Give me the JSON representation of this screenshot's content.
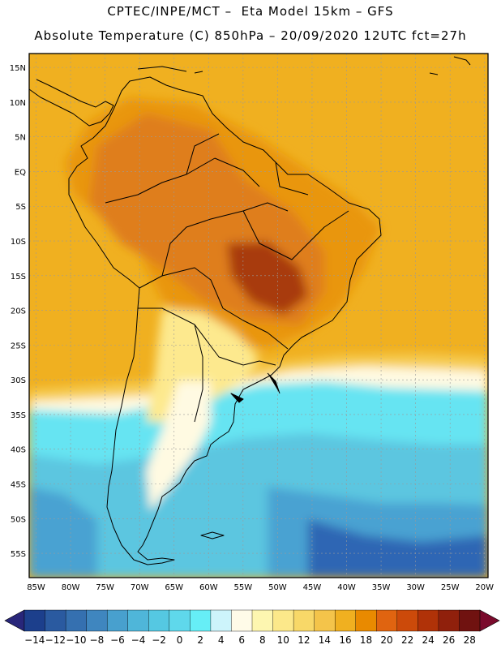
{
  "header": {
    "line1": "CPTEC/INPE/MCT –  Eta Model 15km – GFS",
    "line2": "Absolute Temperature (C) 850hPa – 20/09/2020 12UTC fct=27h"
  },
  "map": {
    "lat_labels": [
      "15N",
      "10N",
      "5N",
      "EQ",
      "5S",
      "10S",
      "15S",
      "20S",
      "25S",
      "30S",
      "35S",
      "40S",
      "45S",
      "50S",
      "55S"
    ],
    "lon_labels": [
      "85W",
      "80W",
      "75W",
      "70W",
      "65W",
      "60W",
      "55W",
      "50W",
      "45W",
      "40W",
      "35W",
      "30W",
      "25W",
      "20W"
    ]
  },
  "colorbar": {
    "labels": [
      "-14",
      "-12",
      "-10",
      "-8",
      "-6",
      "-4",
      "-2",
      "0",
      "2",
      "4",
      "6",
      "8",
      "10",
      "12",
      "14",
      "16",
      "18",
      "20",
      "22",
      "24",
      "26",
      "28"
    ],
    "colors": [
      "#1c3f8c",
      "#2a5aa0",
      "#3570b0",
      "#3f86bf",
      "#48a0ce",
      "#4fb6d9",
      "#55c8e2",
      "#5fd8eb",
      "#66eef6",
      "#cdf4fb",
      "#fffbe8",
      "#fdf6b0",
      "#fce88a",
      "#f8d868",
      "#f4c44a",
      "#f0b020",
      "#e98a00",
      "#e06410",
      "#cc4a0a",
      "#b03208",
      "#90200c",
      "#701210"
    ],
    "low_arrow_color": "#28267a",
    "high_arrow_color": "#7a0a2c"
  },
  "palette": {
    "deep_ocean": "#2f66b4",
    "cold_ocean": "#4aa2d2",
    "cool_ocean": "#5cc6e0",
    "cyan": "#66e4f2",
    "pale_cyan": "#ccf2f8",
    "cream": "#fffae2",
    "yellow": "#fde98e",
    "yellow_orange": "#f6cc52",
    "orange_light": "#f0b020",
    "orange": "#e99610",
    "orange_dark": "#df7e1c",
    "red_orange": "#cc5a14",
    "brown": "#a83a0a",
    "coast": "#000000",
    "grid": "#9a9a9a"
  }
}
